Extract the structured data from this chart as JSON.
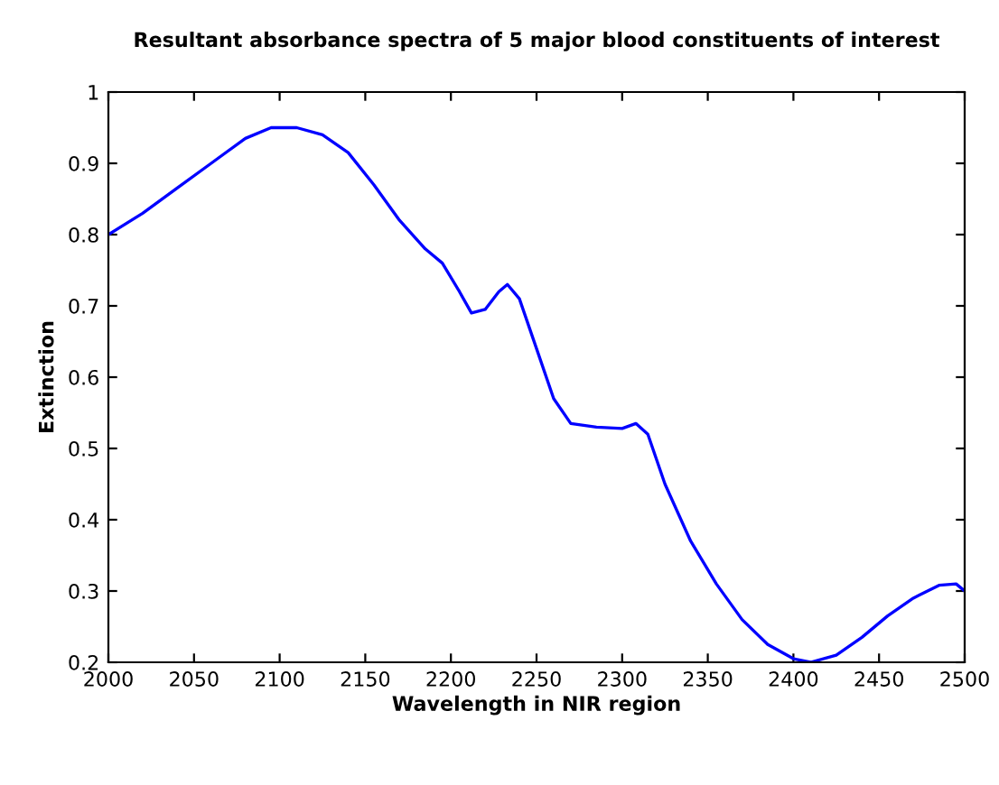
{
  "chart_data": {
    "type": "line",
    "title": "Resultant absorbance spectra of 5 major blood constituents of interest",
    "xlabel": "Wavelength in NIR region",
    "ylabel": "Extinction",
    "x": [
      2000,
      2020,
      2040,
      2060,
      2080,
      2095,
      2110,
      2125,
      2140,
      2155,
      2170,
      2185,
      2195,
      2205,
      2212,
      2220,
      2228,
      2233,
      2240,
      2250,
      2260,
      2270,
      2285,
      2300,
      2308,
      2315,
      2325,
      2340,
      2355,
      2370,
      2385,
      2400,
      2410,
      2425,
      2440,
      2455,
      2470,
      2485,
      2495,
      2500
    ],
    "series": [
      {
        "color": "#0000ff",
        "values": [
          0.8,
          0.83,
          0.865,
          0.9,
          0.935,
          0.95,
          0.95,
          0.94,
          0.915,
          0.87,
          0.82,
          0.78,
          0.76,
          0.72,
          0.69,
          0.695,
          0.72,
          0.73,
          0.71,
          0.64,
          0.57,
          0.535,
          0.53,
          0.528,
          0.535,
          0.52,
          0.45,
          0.37,
          0.31,
          0.26,
          0.225,
          0.205,
          0.2,
          0.21,
          0.235,
          0.265,
          0.29,
          0.308,
          0.31,
          0.3
        ]
      }
    ],
    "xlim": [
      2000,
      2500
    ],
    "ylim": [
      0.2,
      1
    ],
    "xticks": [
      2000,
      2050,
      2100,
      2150,
      2200,
      2250,
      2300,
      2350,
      2400,
      2450,
      2500
    ],
    "yticks": [
      0.2,
      0.3,
      0.4,
      0.5,
      0.6,
      0.7,
      0.8,
      0.9,
      1
    ],
    "grid": false,
    "legend": false,
    "marker": "none",
    "line_style": "solid"
  }
}
